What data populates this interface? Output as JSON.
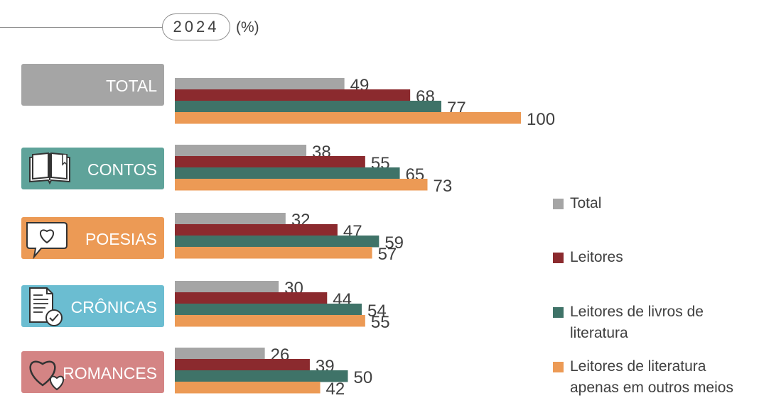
{
  "header": {
    "year": "2024",
    "unit": "(%)"
  },
  "colors": {
    "Total": "#a5a5a5",
    "Leitores": "#8b2a2e",
    "Livros": "#3f7368",
    "Outros": "#ec9a55"
  },
  "categories": [
    {
      "label": "TOTAL",
      "color": "#a5a5a5",
      "icon": "none"
    },
    {
      "label": "CONTOS",
      "color": "#5fa39a",
      "icon": "open-book-icon"
    },
    {
      "label": "POESIAS",
      "color": "#ec9a55",
      "icon": "heart-speech-bubble-icon"
    },
    {
      "label": "CRÔNICAS",
      "color": "#6bbdd1",
      "icon": "document-check-icon"
    },
    {
      "label": "ROMANCES",
      "color": "#d48484",
      "icon": "two-hearts-icon"
    }
  ],
  "legend": [
    {
      "label": "Total"
    },
    {
      "label": "Leitores"
    },
    {
      "label": "Leitores de livros de literatura"
    },
    {
      "label": "Leitores de literatura apenas em outros meios"
    }
  ],
  "chart_data": {
    "type": "bar",
    "orientation": "horizontal",
    "title": "2024 (%)",
    "categories": [
      "TOTAL",
      "CONTOS",
      "POESIAS",
      "CRÔNICAS",
      "ROMANCES"
    ],
    "series": [
      {
        "name": "Total",
        "values": [
          49,
          38,
          32,
          30,
          26
        ]
      },
      {
        "name": "Leitores",
        "values": [
          68,
          55,
          47,
          44,
          39
        ]
      },
      {
        "name": "Leitores de livros de literatura",
        "values": [
          77,
          65,
          59,
          54,
          50
        ]
      },
      {
        "name": "Leitores de literatura apenas em outros meios",
        "values": [
          100,
          73,
          57,
          55,
          42
        ]
      }
    ],
    "xlim": [
      0,
      100
    ],
    "xlabel": "",
    "ylabel": "",
    "grid": false,
    "legend_position": "right"
  }
}
